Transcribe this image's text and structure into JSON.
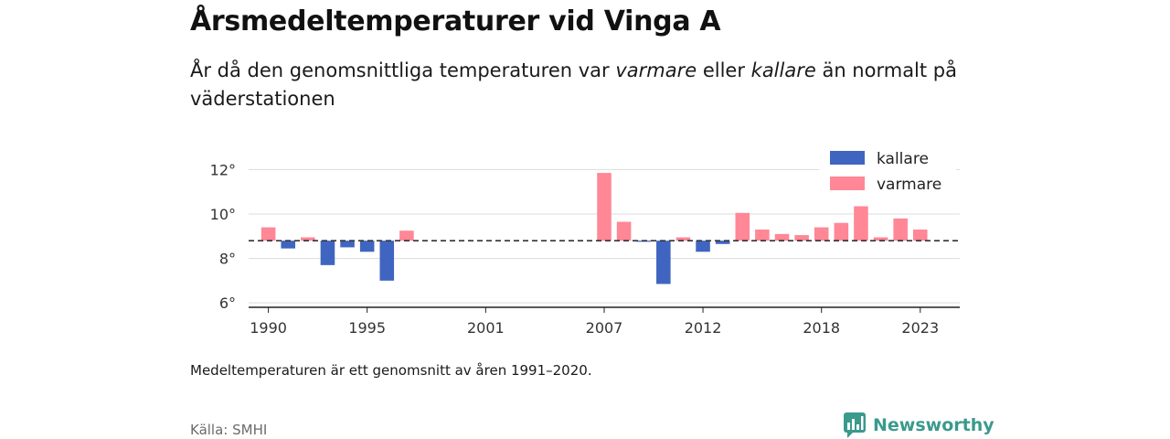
{
  "header": {
    "title": "Årsmedeltemperaturer vid Vinga A",
    "subtitle_parts": [
      "År då den genomsnittliga temperaturen var ",
      "varmare",
      " eller ",
      "kallare",
      " än normalt på väderstationen"
    ]
  },
  "footer": {
    "note": "Medeltemperaturen är ett genomsnitt av åren 1991–2020.",
    "source": "Källa: SMHI",
    "brand": "Newsworthy",
    "brand_icon": "newsworthy-logo-icon"
  },
  "chart_data": {
    "type": "bar",
    "baseline": 8.8,
    "ylim": [
      5.8,
      12.8
    ],
    "yticks": [
      6,
      8,
      10,
      12
    ],
    "ytick_labels": [
      "6°",
      "8°",
      "10°",
      "12°"
    ],
    "xlim": [
      1989,
      2025
    ],
    "xticks": [
      1990,
      1995,
      2001,
      2007,
      2012,
      2018,
      2023
    ],
    "grid": true,
    "legend_position": "top-right",
    "legend": [
      {
        "name": "kallare",
        "color": "#4065c0"
      },
      {
        "name": "varmare",
        "color": "#ff8796"
      }
    ],
    "x": [
      1990,
      1991,
      1992,
      1993,
      1994,
      1995,
      1996,
      1997,
      2007,
      2008,
      2009,
      2010,
      2011,
      2012,
      2013,
      2014,
      2015,
      2016,
      2017,
      2018,
      2019,
      2020,
      2021,
      2022,
      2023
    ],
    "values": [
      9.4,
      8.45,
      8.95,
      7.7,
      8.5,
      8.3,
      7.0,
      9.25,
      11.85,
      9.65,
      8.75,
      6.85,
      8.95,
      8.3,
      8.65,
      10.05,
      9.3,
      9.1,
      9.05,
      9.4,
      9.6,
      10.35,
      8.95,
      9.8,
      9.3
    ]
  }
}
